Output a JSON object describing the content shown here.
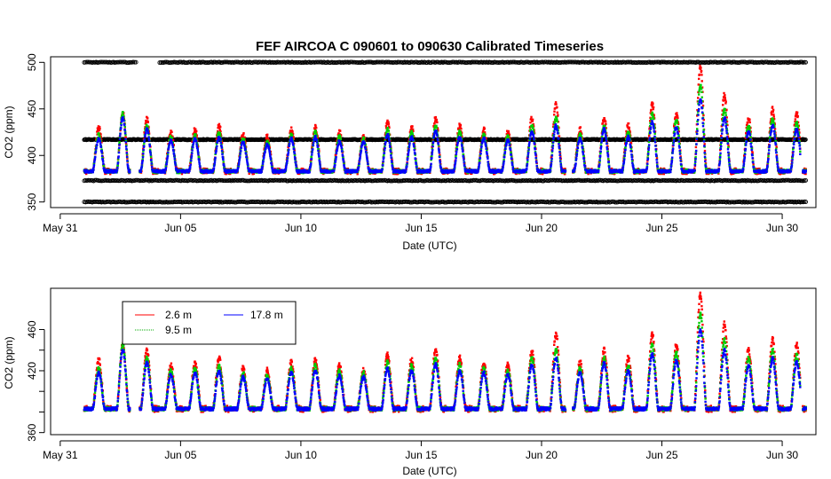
{
  "chart_data": [
    {
      "type": "scatter",
      "title": "FEF   AIRCOA  C    090601  to  090630   Calibrated Timeseries",
      "xlabel": "Date (UTC)",
      "ylabel": "CO2 (ppm)",
      "xlim_days": [
        -0.4,
        31.4
      ],
      "ylim": [
        344,
        506
      ],
      "x_ticks": [
        {
          "day": 0,
          "label": "May 31"
        },
        {
          "day": 5,
          "label": "Jun 05"
        },
        {
          "day": 10,
          "label": "Jun 10"
        },
        {
          "day": 15,
          "label": "Jun 15"
        },
        {
          "day": 20,
          "label": "Jun 20"
        },
        {
          "day": 25,
          "label": "Jun 25"
        },
        {
          "day": 30,
          "label": "Jun 30"
        }
      ],
      "y_ticks": [
        350,
        400,
        450,
        500
      ],
      "calibration_levels": [
        350,
        373,
        417,
        500
      ],
      "x_range_days": [
        1.0,
        31.0
      ],
      "series": [
        {
          "name": "calibration",
          "color": "#000000",
          "marker": "open-circle"
        },
        {
          "name": "2.6 m",
          "color": "#ff0000"
        },
        {
          "name": "9.5 m",
          "color": "#00cc00"
        },
        {
          "name": "17.8 m",
          "color": "#0000ff"
        }
      ]
    },
    {
      "type": "scatter",
      "title": "",
      "xlabel": "Date (UTC)",
      "ylabel": "CO2 (ppm)",
      "xlim_days": [
        -0.4,
        31.4
      ],
      "ylim": [
        358,
        500
      ],
      "x_ticks": [
        {
          "day": 0,
          "label": "May 31"
        },
        {
          "day": 5,
          "label": "Jun 05"
        },
        {
          "day": 10,
          "label": "Jun 10"
        },
        {
          "day": 15,
          "label": "Jun 15"
        },
        {
          "day": 20,
          "label": "Jun 20"
        },
        {
          "day": 25,
          "label": "Jun 25"
        },
        {
          "day": 30,
          "label": "Jun 30"
        }
      ],
      "y_ticks": [
        360,
        380,
        400,
        420,
        440,
        460
      ],
      "y_tick_labels_shown": [
        360,
        420,
        460
      ],
      "legend": {
        "placement": "top-left",
        "entries": [
          {
            "label": "2.6 m",
            "color": "#ff0000"
          },
          {
            "label": "17.8 m",
            "color": "#0000ff"
          },
          {
            "label": "9.5 m",
            "color": "#00aa00"
          }
        ]
      },
      "series": [
        {
          "name": "2.6 m",
          "color": "#ff0000"
        },
        {
          "name": "9.5 m",
          "color": "#00cc00"
        },
        {
          "name": "17.8 m",
          "color": "#0000ff"
        }
      ]
    }
  ],
  "daily_peaks": {
    "days": [
      1.6,
      2.6,
      3.6,
      4.6,
      5.6,
      6.6,
      7.6,
      8.6,
      9.6,
      10.6,
      11.6,
      12.6,
      13.6,
      14.6,
      15.6,
      16.6,
      17.6,
      18.6,
      19.6,
      20.6,
      21.6,
      22.6,
      23.6,
      24.6,
      25.6,
      26.6,
      27.6,
      28.6,
      29.6,
      30.6
    ],
    "red_peak_ppm": [
      430,
      445,
      440,
      425,
      428,
      432,
      422,
      420,
      428,
      430,
      425,
      420,
      435,
      430,
      440,
      432,
      428,
      425,
      440,
      455,
      428,
      440,
      432,
      455,
      445,
      495,
      465,
      440,
      450,
      445
    ],
    "green_peak_ppm": [
      422,
      445,
      432,
      420,
      422,
      425,
      418,
      415,
      422,
      425,
      420,
      418,
      428,
      425,
      432,
      426,
      422,
      420,
      432,
      440,
      422,
      432,
      425,
      445,
      438,
      475,
      450,
      432,
      440,
      435
    ],
    "blue_peak_ppm": [
      418,
      440,
      428,
      416,
      418,
      420,
      414,
      412,
      418,
      420,
      415,
      414,
      422,
      420,
      426,
      420,
      418,
      416,
      426,
      432,
      418,
      428,
      420,
      436,
      430,
      460,
      440,
      425,
      432,
      428
    ],
    "baseline_ppm": 383,
    "gaps_days": [
      [
        2.9,
        3.3
      ],
      [
        21.0,
        21.3
      ],
      [
        30.75,
        30.85
      ]
    ]
  }
}
